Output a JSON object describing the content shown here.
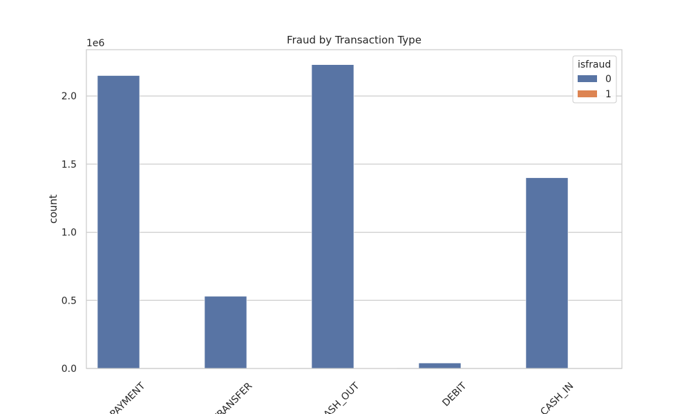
{
  "chart_data": {
    "type": "bar",
    "title": "Fraud by Transaction Type",
    "xlabel": "",
    "ylabel": "count",
    "y_multiplier_label": "1e6",
    "ylim": [
      0,
      2340000
    ],
    "y_ticks": [
      0,
      500000,
      1000000,
      1500000,
      2000000
    ],
    "y_tick_labels": [
      "0.0",
      "0.5",
      "1.0",
      "1.5",
      "2.0"
    ],
    "categories": [
      "PAYMENT",
      "TRANSFER",
      "CASH_OUT",
      "DEBIT",
      "CASH_IN"
    ],
    "grid": true,
    "legend": {
      "title": "isfraud",
      "placement": "top-right"
    },
    "series": [
      {
        "name": "0",
        "color": "#5874a4",
        "values": [
          2150000,
          530000,
          2230000,
          40000,
          1400000
        ]
      },
      {
        "name": "1",
        "color": "#dd8452",
        "values": [
          0,
          4000,
          4100,
          0,
          0
        ]
      }
    ]
  }
}
